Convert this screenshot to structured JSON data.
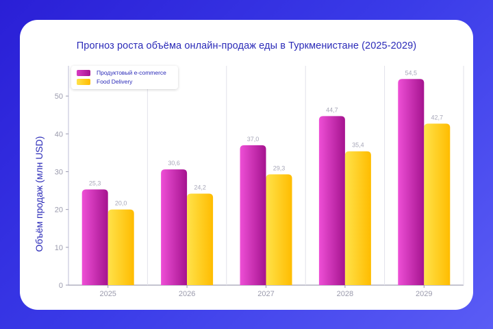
{
  "chart_data": {
    "type": "bar",
    "title": "Прогноз роста объёма онлайн-продаж еды в Туркменистане (2025-2029)",
    "xlabel": "",
    "ylabel": "Объём продаж (млн USD)",
    "ylim": [
      0,
      58
    ],
    "yticks": [
      0,
      10,
      20,
      30,
      40,
      50
    ],
    "categories": [
      "2025",
      "2026",
      "2027",
      "2028",
      "2029"
    ],
    "series": [
      {
        "name": "Продуктовый e-commerce",
        "values": [
          25.3,
          30.6,
          37.0,
          44.7,
          54.5
        ],
        "labels": [
          "25,3",
          "30,6",
          "37,0",
          "44,7",
          "54,5"
        ],
        "color": "#b0169e"
      },
      {
        "name": "Food Delivery",
        "values": [
          20.0,
          24.2,
          29.3,
          35.4,
          42.7
        ],
        "labels": [
          "20,0",
          "24,2",
          "29,3",
          "35,4",
          "42,7"
        ],
        "color": "#ffc800"
      }
    ],
    "grid": "vertical",
    "legend_position": "top-left"
  }
}
